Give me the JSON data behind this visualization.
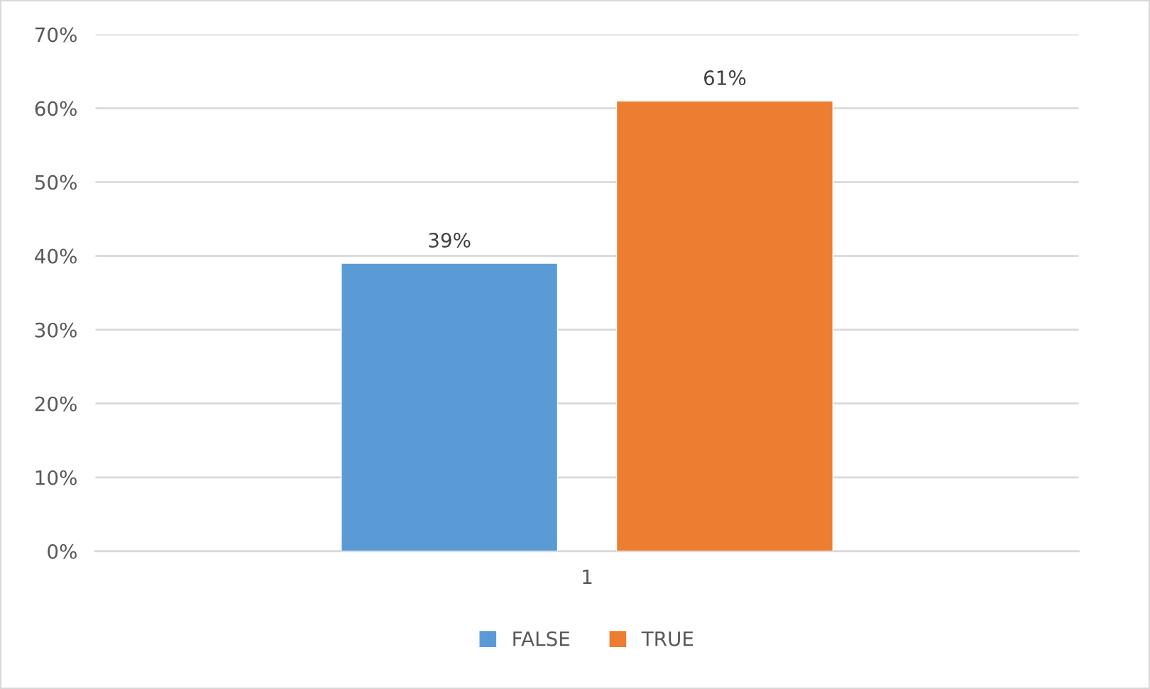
{
  "chart_data": {
    "type": "bar",
    "categories": [
      "1"
    ],
    "series": [
      {
        "name": "FALSE",
        "color": "#5b9bd5",
        "values": [
          39
        ],
        "value_labels": [
          "39%"
        ]
      },
      {
        "name": "TRUE",
        "color": "#ed7d31",
        "values": [
          61
        ],
        "value_labels": [
          "61%"
        ]
      }
    ],
    "ylim": [
      0,
      70
    ],
    "yticks": [
      {
        "value": 0,
        "label": "0%"
      },
      {
        "value": 10,
        "label": "10%"
      },
      {
        "value": 20,
        "label": "20%"
      },
      {
        "value": 30,
        "label": "30%"
      },
      {
        "value": 40,
        "label": "40%"
      },
      {
        "value": 50,
        "label": "50%"
      },
      {
        "value": 60,
        "label": "60%"
      },
      {
        "value": 70,
        "label": "70%"
      }
    ],
    "grid": "y",
    "legend": "bottom"
  }
}
